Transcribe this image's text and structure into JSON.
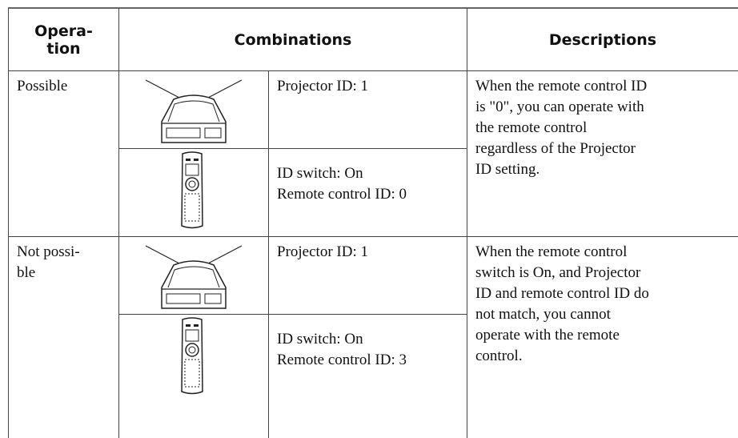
{
  "table": {
    "header": [
      "Opera-\ntion",
      "Combinations",
      "Descriptions"
    ],
    "rows": [
      {
        "operation": "Possible",
        "projector": "Projector ID: 1",
        "remote": "ID switch: On\nRemote control ID: 0",
        "description": "When the remote control ID\nis \"0\", you can operate with\nthe remote control\nregardless of the Projector\nID setting."
      },
      {
        "operation": "Not possi-\nble",
        "projector": "Projector ID: 1",
        "remote": "ID switch: On\nRemote control ID: 3",
        "description": "When the remote control\nswitch is On, and Projector\nID and remote control ID do\nnot match, you cannot\noperate with the remote\ncontrol."
      }
    ]
  }
}
